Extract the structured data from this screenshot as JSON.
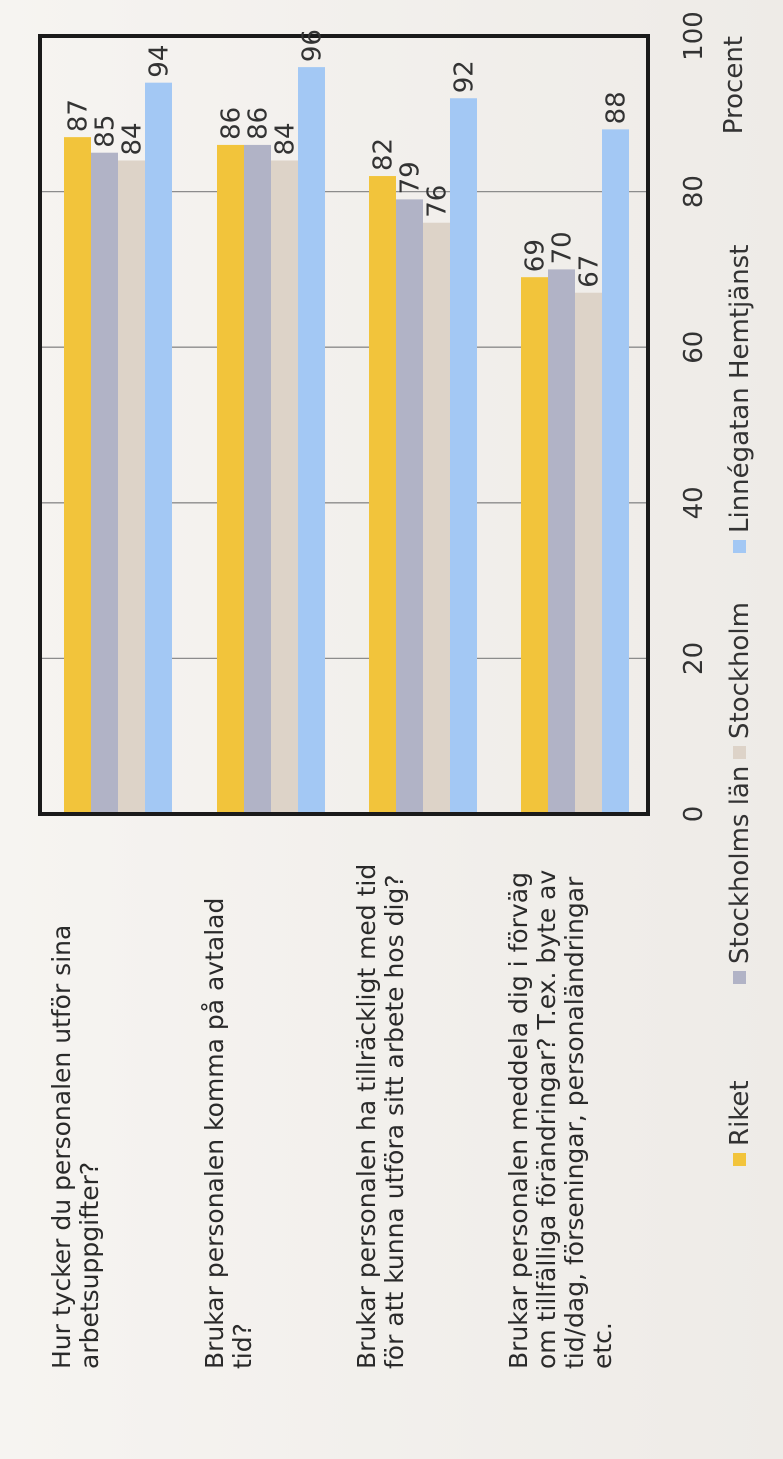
{
  "chart_data": {
    "type": "bar",
    "orientation": "horizontal",
    "categories": [
      [
        "Hur tycker du personalen utför sina",
        "arbetsuppgifter?"
      ],
      [
        "Brukar personalen komma på avtalad",
        "tid?"
      ],
      [
        "Brukar personalen ha tillräckligt med tid",
        "för att kunna utföra sitt arbete hos dig?"
      ],
      [
        "Brukar personalen meddela dig i förväg",
        "om tillfälliga förändringar? T.ex. byte av",
        "tid/dag, förseningar, personaländringar",
        "etc."
      ]
    ],
    "series": [
      {
        "name": "Riket",
        "color": "#f2c43b",
        "values": [
          87,
          86,
          82,
          69
        ]
      },
      {
        "name": "Stockholms län",
        "color": "#b1b3c6",
        "values": [
          85,
          86,
          79,
          70
        ]
      },
      {
        "name": "Stockholm",
        "color": "#ddd3c8",
        "values": [
          84,
          84,
          76,
          67
        ]
      },
      {
        "name": "Linnégatan Hemtjänst",
        "color": "#a3c8f4",
        "values": [
          94,
          96,
          92,
          88
        ]
      }
    ],
    "xlabel": "Procent",
    "xlim": [
      0,
      100
    ],
    "ticks": [
      0,
      20,
      40,
      60,
      80,
      100
    ],
    "grid": true,
    "legend": "bottom"
  }
}
